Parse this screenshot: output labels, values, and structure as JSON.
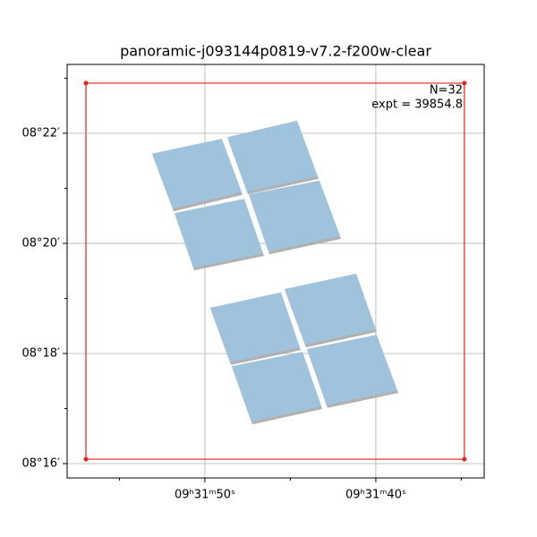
{
  "chart_data": {
    "type": "footprint",
    "title": "panoramic-j093144p0819-v7.2-f200w-clear",
    "annotations": [
      "N=32",
      "expt = 39854.8"
    ],
    "xlim": [
      58.06,
      33.66
    ],
    "ylim": [
      15.74,
      23.25
    ],
    "xticks": [
      {
        "value": 50,
        "label": "09ʰ31ᵐ50ˢ"
      },
      {
        "value": 40,
        "label": "09ʰ31ᵐ40ˢ"
      }
    ],
    "xminorticks": [
      55,
      45,
      35
    ],
    "yticks": [
      {
        "value": 22,
        "label": "08$^\\circ$22′"
      },
      {
        "value": 20,
        "label": "08$^\\circ$20′"
      },
      {
        "value": 18,
        "label": "08$^\\circ$18′"
      },
      {
        "value": 16,
        "label": "08$^\\circ$16′"
      }
    ],
    "yminorticks": [
      23,
      21,
      19,
      17
    ],
    "grid": true,
    "bounds": {
      "color": "#e8231e",
      "ra": [
        56.96,
        34.82,
        34.82,
        56.96
      ],
      "dec": [
        22.91,
        22.91,
        16.08,
        16.08
      ]
    },
    "footprint_color": "#9fc2dd",
    "footprints": [
      {
        "ra": [
          53.09,
          49.01,
          47.85,
          51.88
        ],
        "dec": [
          21.63,
          21.9,
          20.93,
          20.63
        ]
      },
      {
        "ra": [
          48.69,
          44.61,
          43.4,
          47.54
        ],
        "dec": [
          21.93,
          22.23,
          21.22,
          20.94
        ]
      },
      {
        "ra": [
          51.78,
          47.7,
          46.6,
          50.68
        ],
        "dec": [
          20.55,
          20.81,
          19.82,
          19.56
        ]
      },
      {
        "ra": [
          47.43,
          43.3,
          42.09,
          46.28
        ],
        "dec": [
          20.89,
          21.14,
          20.13,
          19.85
        ]
      },
      {
        "ra": [
          49.69,
          45.55,
          44.45,
          48.53
        ],
        "dec": [
          18.83,
          19.11,
          18.11,
          17.84
        ]
      },
      {
        "ra": [
          45.34,
          41.15,
          40.0,
          44.14
        ],
        "dec": [
          19.17,
          19.45,
          18.44,
          18.16
        ]
      },
      {
        "ra": [
          48.43,
          44.29,
          43.19,
          47.28
        ],
        "dec": [
          17.77,
          18.03,
          17.04,
          16.76
        ]
      },
      {
        "ra": [
          44.03,
          39.95,
          38.74,
          42.88
        ],
        "dec": [
          18.08,
          18.34,
          17.33,
          17.06
        ]
      }
    ]
  }
}
